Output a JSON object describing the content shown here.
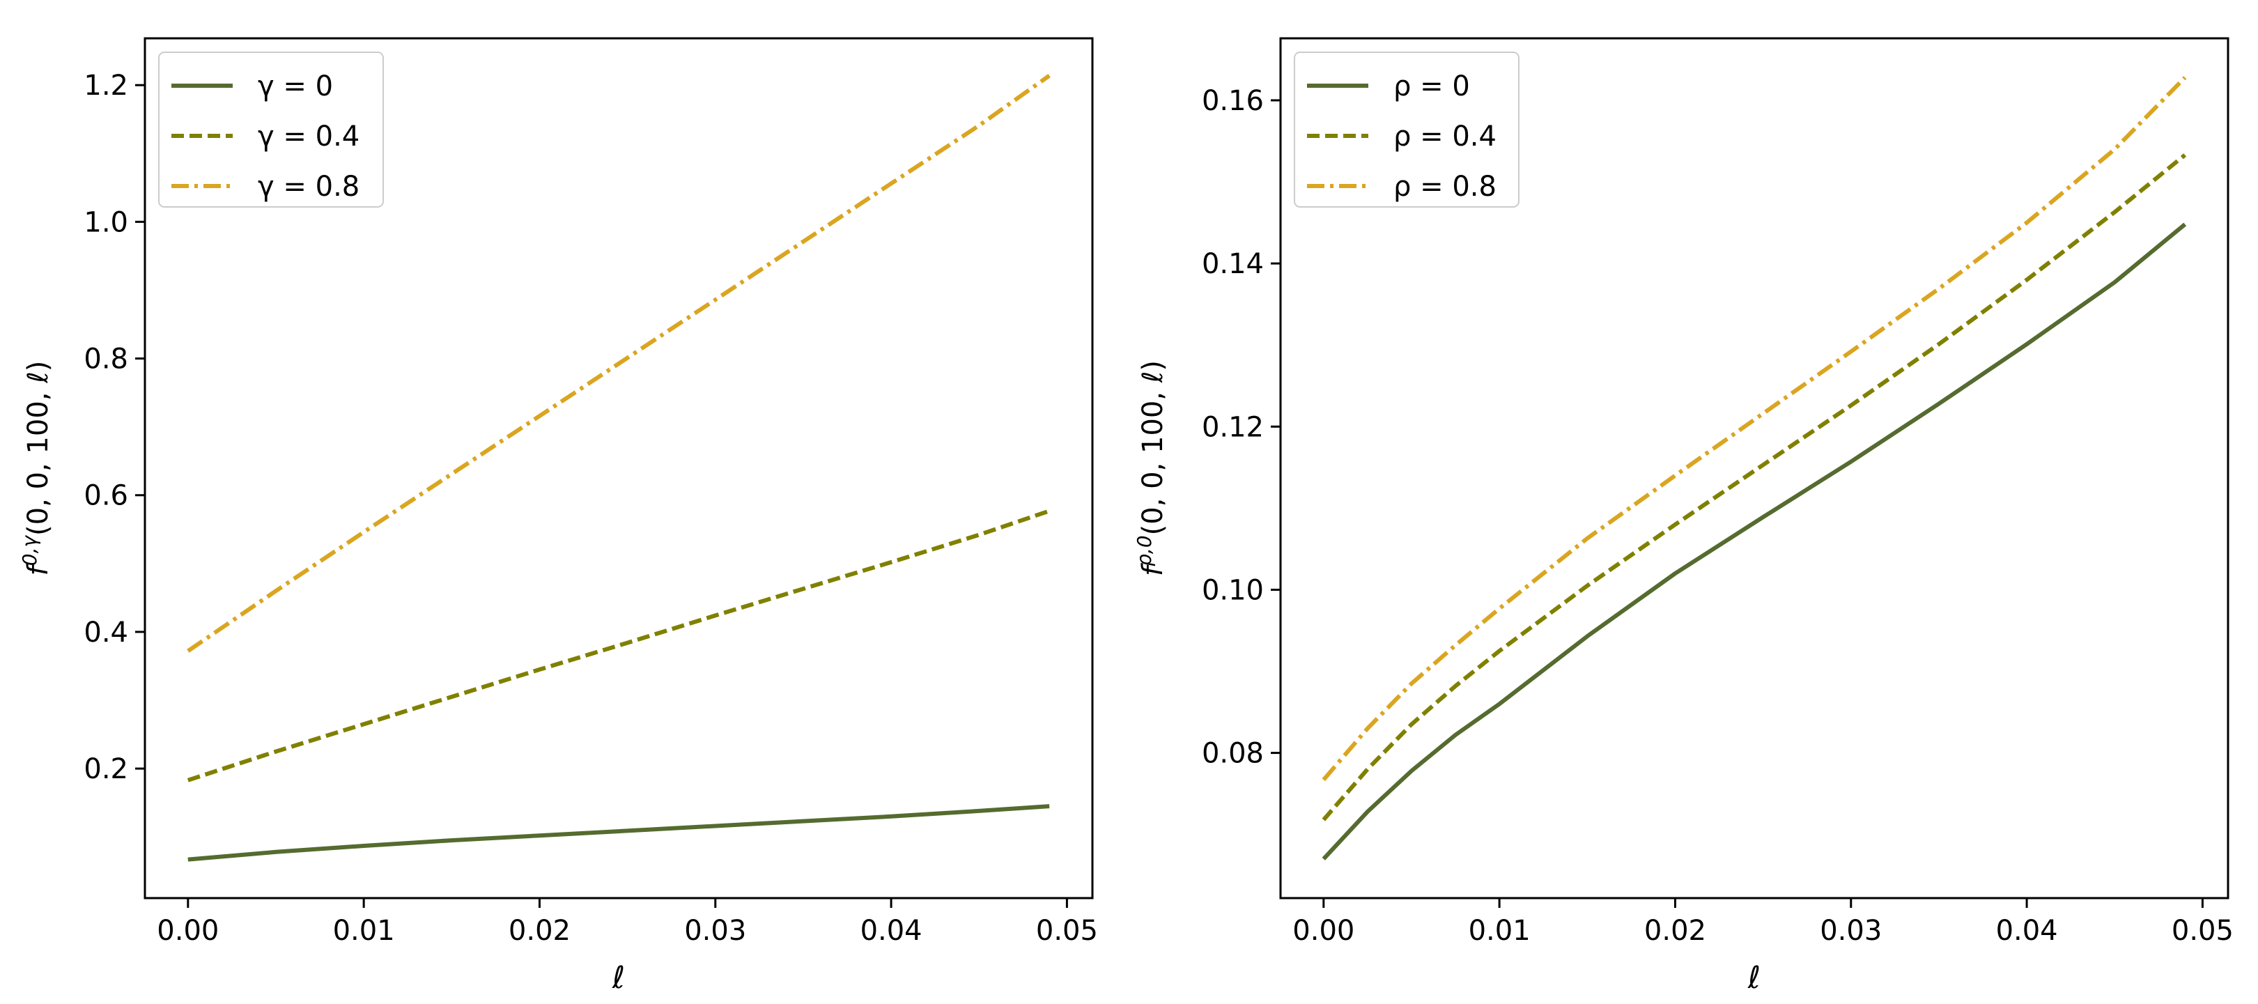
{
  "chart_data": [
    {
      "type": "line",
      "xlabel": "ℓ",
      "ylabel": "f^{0,γ}(0, 0, 100, ℓ)",
      "ylabel_main": "f",
      "ylabel_sup": "0,γ",
      "ylabel_args": "(0, 0, 100, ℓ)",
      "xlim": [
        -0.00245,
        0.05145
      ],
      "ylim": [
        0.0105,
        1.2685
      ],
      "xticks": [
        0.0,
        0.01,
        0.02,
        0.03,
        0.04,
        0.05
      ],
      "xtick_labels": [
        "0.00",
        "0.01",
        "0.02",
        "0.03",
        "0.04",
        "0.05"
      ],
      "yticks": [
        0.2,
        0.4,
        0.6,
        0.8,
        1.0,
        1.2
      ],
      "ytick_labels": [
        "0.2",
        "0.4",
        "0.6",
        "0.8",
        "1.0",
        "1.2"
      ],
      "legend_position": "upper-left",
      "series": [
        {
          "name": "γ = 0",
          "legend_label": "γ = 0",
          "style": "solid",
          "color": "#556b2f",
          "x": [
            0.0,
            0.005,
            0.01,
            0.015,
            0.02,
            0.025,
            0.03,
            0.035,
            0.04,
            0.045,
            0.049
          ],
          "values": [
            0.067,
            0.078,
            0.087,
            0.095,
            0.102,
            0.109,
            0.116,
            0.123,
            0.13,
            0.138,
            0.145
          ]
        },
        {
          "name": "γ = 0.4",
          "legend_label": "γ = 0.4",
          "style": "dashed",
          "color": "#808000",
          "x": [
            0.0,
            0.005,
            0.01,
            0.015,
            0.02,
            0.025,
            0.03,
            0.035,
            0.04,
            0.045,
            0.049
          ],
          "values": [
            0.183,
            0.225,
            0.265,
            0.305,
            0.345,
            0.384,
            0.424,
            0.463,
            0.502,
            0.542,
            0.577
          ]
        },
        {
          "name": "γ = 0.8",
          "legend_label": "γ = 0.8",
          "style": "dashdot",
          "color": "#daa520",
          "x": [
            0.0,
            0.005,
            0.01,
            0.015,
            0.02,
            0.025,
            0.03,
            0.035,
            0.04,
            0.045,
            0.049
          ],
          "values": [
            0.372,
            0.46,
            0.546,
            0.631,
            0.716,
            0.801,
            0.886,
            0.971,
            1.056,
            1.141,
            1.214
          ]
        }
      ]
    },
    {
      "type": "line",
      "xlabel": "ℓ",
      "ylabel": "f^{ρ,0}(0, 0, 100, ℓ)",
      "ylabel_main": "f",
      "ylabel_sup": "ρ,0",
      "ylabel_args": "(0, 0, 100, ℓ)",
      "xlim": [
        -0.00245,
        0.05145
      ],
      "ylim": [
        0.0622,
        0.1676
      ],
      "xticks": [
        0.0,
        0.01,
        0.02,
        0.03,
        0.04,
        0.05
      ],
      "xtick_labels": [
        "0.00",
        "0.01",
        "0.02",
        "0.03",
        "0.04",
        "0.05"
      ],
      "yticks": [
        0.08,
        0.1,
        0.12,
        0.14,
        0.16
      ],
      "ytick_labels": [
        "0.08",
        "0.10",
        "0.12",
        "0.14",
        "0.16"
      ],
      "legend_position": "upper-left",
      "series": [
        {
          "name": "ρ = 0",
          "legend_label": "ρ = 0",
          "style": "solid",
          "color": "#556b2f",
          "x": [
            0.0,
            0.0025,
            0.005,
            0.0075,
            0.01,
            0.015,
            0.02,
            0.025,
            0.03,
            0.035,
            0.04,
            0.045,
            0.049
          ],
          "values": [
            0.067,
            0.0728,
            0.0778,
            0.0822,
            0.086,
            0.0943,
            0.102,
            0.1089,
            0.1157,
            0.1228,
            0.1301,
            0.1377,
            0.1448
          ]
        },
        {
          "name": "ρ = 0.4",
          "legend_label": "ρ = 0.4",
          "style": "dashed",
          "color": "#808000",
          "x": [
            0.0,
            0.0025,
            0.005,
            0.0075,
            0.01,
            0.015,
            0.02,
            0.025,
            0.03,
            0.035,
            0.04,
            0.045,
            0.049
          ],
          "values": [
            0.0718,
            0.078,
            0.0835,
            0.0882,
            0.0925,
            0.1005,
            0.108,
            0.1153,
            0.1226,
            0.1301,
            0.138,
            0.1463,
            0.1533
          ]
        },
        {
          "name": "ρ = 0.8",
          "legend_label": "ρ = 0.8",
          "style": "dashdot",
          "color": "#daa520",
          "x": [
            0.0,
            0.0025,
            0.005,
            0.0075,
            0.01,
            0.015,
            0.02,
            0.025,
            0.03,
            0.035,
            0.04,
            0.045,
            0.049
          ],
          "values": [
            0.0767,
            0.083,
            0.0885,
            0.0932,
            0.0977,
            0.1063,
            0.114,
            0.1216,
            0.1292,
            0.1369,
            0.145,
            0.154,
            0.1628
          ]
        }
      ]
    }
  ]
}
